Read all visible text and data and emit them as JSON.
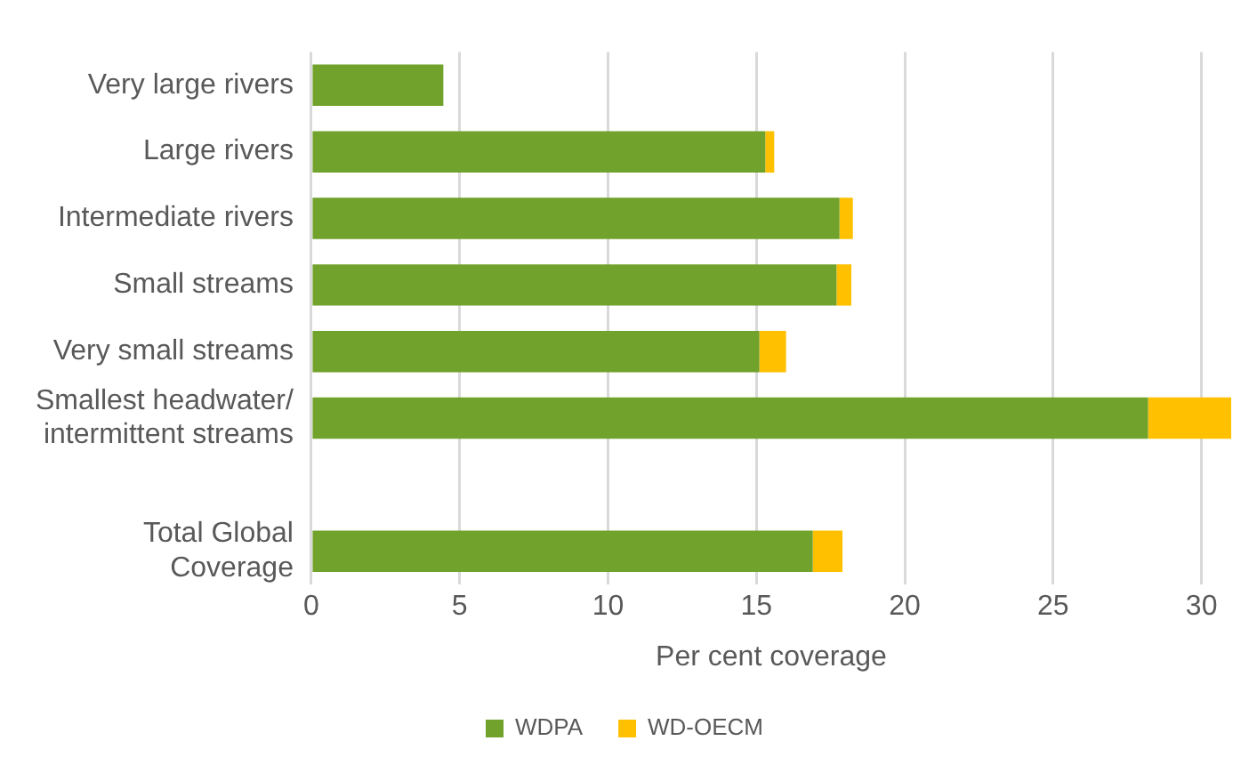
{
  "chart_data": {
    "type": "bar",
    "orientation": "horizontal",
    "stacked": true,
    "xlabel": "Per cent coverage",
    "categories": [
      "Very large rivers",
      "Large rivers",
      "Intermediate rivers",
      "Small streams",
      "Very small streams",
      "Smallest headwater/\nintermittent streams",
      null,
      "Total Global\nCoverage"
    ],
    "series": [
      {
        "name": "WDPA",
        "color": "#71a22c",
        "values": [
          4.45,
          15.3,
          17.8,
          17.7,
          15.1,
          28.2,
          null,
          16.9
        ]
      },
      {
        "name": "WD-OECM",
        "color": "#ffc000",
        "values": [
          null,
          0.3,
          0.45,
          0.5,
          0.9,
          2.8,
          null,
          1.0
        ]
      }
    ],
    "xlim": [
      0,
      31
    ],
    "xticks": [
      0,
      5,
      10,
      15,
      20,
      25,
      30
    ],
    "grid": "x",
    "legend": "bottom"
  }
}
